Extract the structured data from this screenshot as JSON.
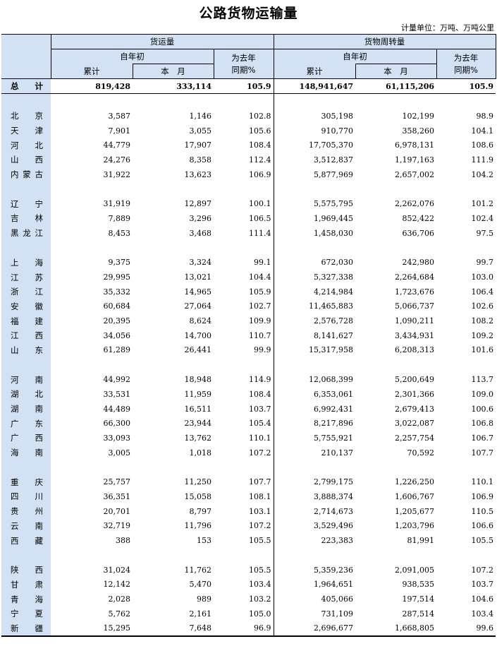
{
  "title": "公路货物运输量",
  "unit_label": "计量单位：万吨、万吨公里",
  "header": {
    "freight_volume": "货运量",
    "turnover": "货物周转量",
    "ytd_line1": "自年初",
    "ytd_line2": "累计",
    "month": "本　月",
    "yoy_line1": "为去年",
    "yoy_line2": "同期%"
  },
  "total": {
    "name": "总　计",
    "vol_ytd": "819,428",
    "vol_month": "333,114",
    "vol_yoy": "105.9",
    "turn_ytd": "148,941,647",
    "turn_month": "61,115,206",
    "turn_yoy": "105.9"
  },
  "groups": [
    [
      {
        "name": "北京",
        "vol_ytd": "3,587",
        "vol_month": "1,146",
        "vol_yoy": "102.8",
        "turn_ytd": "305,198",
        "turn_month": "102,199",
        "turn_yoy": "98.9"
      },
      {
        "name": "天津",
        "vol_ytd": "7,901",
        "vol_month": "3,055",
        "vol_yoy": "105.6",
        "turn_ytd": "910,770",
        "turn_month": "358,260",
        "turn_yoy": "104.1"
      },
      {
        "name": "河北",
        "vol_ytd": "44,779",
        "vol_month": "17,907",
        "vol_yoy": "108.4",
        "turn_ytd": "17,705,370",
        "turn_month": "6,978,131",
        "turn_yoy": "108.6"
      },
      {
        "name": "山西",
        "vol_ytd": "24,276",
        "vol_month": "8,358",
        "vol_yoy": "112.4",
        "turn_ytd": "3,512,837",
        "turn_month": "1,197,163",
        "turn_yoy": "111.9"
      },
      {
        "name": "内蒙古",
        "vol_ytd": "31,922",
        "vol_month": "13,623",
        "vol_yoy": "106.9",
        "turn_ytd": "5,877,969",
        "turn_month": "2,657,002",
        "turn_yoy": "104.2"
      }
    ],
    [
      {
        "name": "辽宁",
        "vol_ytd": "31,919",
        "vol_month": "12,897",
        "vol_yoy": "100.1",
        "turn_ytd": "5,575,795",
        "turn_month": "2,262,076",
        "turn_yoy": "101.2"
      },
      {
        "name": "吉林",
        "vol_ytd": "7,889",
        "vol_month": "3,296",
        "vol_yoy": "106.5",
        "turn_ytd": "1,969,445",
        "turn_month": "852,422",
        "turn_yoy": "102.4"
      },
      {
        "name": "黑龙江",
        "vol_ytd": "8,453",
        "vol_month": "3,468",
        "vol_yoy": "111.4",
        "turn_ytd": "1,458,030",
        "turn_month": "636,706",
        "turn_yoy": "97.5"
      }
    ],
    [
      {
        "name": "上海",
        "vol_ytd": "9,375",
        "vol_month": "3,324",
        "vol_yoy": "99.1",
        "turn_ytd": "672,030",
        "turn_month": "242,980",
        "turn_yoy": "99.7"
      },
      {
        "name": "江苏",
        "vol_ytd": "29,995",
        "vol_month": "13,021",
        "vol_yoy": "104.4",
        "turn_ytd": "5,327,338",
        "turn_month": "2,264,684",
        "turn_yoy": "103.0"
      },
      {
        "name": "浙江",
        "vol_ytd": "35,332",
        "vol_month": "14,965",
        "vol_yoy": "105.9",
        "turn_ytd": "4,214,984",
        "turn_month": "1,723,676",
        "turn_yoy": "106.4"
      },
      {
        "name": "安徽",
        "vol_ytd": "60,684",
        "vol_month": "27,064",
        "vol_yoy": "102.7",
        "turn_ytd": "11,465,883",
        "turn_month": "5,066,737",
        "turn_yoy": "102.6"
      },
      {
        "name": "福建",
        "vol_ytd": "20,395",
        "vol_month": "8,624",
        "vol_yoy": "109.9",
        "turn_ytd": "2,576,728",
        "turn_month": "1,090,211",
        "turn_yoy": "108.2"
      },
      {
        "name": "江西",
        "vol_ytd": "34,056",
        "vol_month": "14,700",
        "vol_yoy": "110.7",
        "turn_ytd": "8,141,627",
        "turn_month": "3,434,931",
        "turn_yoy": "109.2"
      },
      {
        "name": "山东",
        "vol_ytd": "61,289",
        "vol_month": "26,441",
        "vol_yoy": "99.9",
        "turn_ytd": "15,317,958",
        "turn_month": "6,208,313",
        "turn_yoy": "101.6"
      }
    ],
    [
      {
        "name": "河南",
        "vol_ytd": "44,992",
        "vol_month": "18,948",
        "vol_yoy": "114.9",
        "turn_ytd": "12,068,399",
        "turn_month": "5,200,649",
        "turn_yoy": "113.7"
      },
      {
        "name": "湖北",
        "vol_ytd": "33,531",
        "vol_month": "11,959",
        "vol_yoy": "108.4",
        "turn_ytd": "6,353,061",
        "turn_month": "2,301,366",
        "turn_yoy": "109.0"
      },
      {
        "name": "湖南",
        "vol_ytd": "44,489",
        "vol_month": "16,511",
        "vol_yoy": "103.7",
        "turn_ytd": "6,992,431",
        "turn_month": "2,679,413",
        "turn_yoy": "100.6"
      },
      {
        "name": "广东",
        "vol_ytd": "66,300",
        "vol_month": "23,944",
        "vol_yoy": "105.4",
        "turn_ytd": "8,217,896",
        "turn_month": "3,022,087",
        "turn_yoy": "106.8"
      },
      {
        "name": "广西",
        "vol_ytd": "33,093",
        "vol_month": "13,762",
        "vol_yoy": "110.1",
        "turn_ytd": "5,755,921",
        "turn_month": "2,257,754",
        "turn_yoy": "106.7"
      },
      {
        "name": "海南",
        "vol_ytd": "3,005",
        "vol_month": "1,018",
        "vol_yoy": "107.2",
        "turn_ytd": "210,137",
        "turn_month": "70,592",
        "turn_yoy": "107.7"
      }
    ],
    [
      {
        "name": "重庆",
        "vol_ytd": "25,757",
        "vol_month": "11,250",
        "vol_yoy": "107.7",
        "turn_ytd": "2,799,175",
        "turn_month": "1,226,250",
        "turn_yoy": "110.1"
      },
      {
        "name": "四川",
        "vol_ytd": "36,351",
        "vol_month": "15,058",
        "vol_yoy": "108.1",
        "turn_ytd": "3,888,374",
        "turn_month": "1,606,767",
        "turn_yoy": "106.9"
      },
      {
        "name": "贵州",
        "vol_ytd": "20,701",
        "vol_month": "8,797",
        "vol_yoy": "103.1",
        "turn_ytd": "2,714,673",
        "turn_month": "1,205,677",
        "turn_yoy": "110.5"
      },
      {
        "name": "云南",
        "vol_ytd": "32,719",
        "vol_month": "11,796",
        "vol_yoy": "107.2",
        "turn_ytd": "3,529,496",
        "turn_month": "1,203,796",
        "turn_yoy": "106.6"
      },
      {
        "name": "西藏",
        "vol_ytd": "388",
        "vol_month": "153",
        "vol_yoy": "105.5",
        "turn_ytd": "223,383",
        "turn_month": "81,991",
        "turn_yoy": "105.5"
      }
    ],
    [
      {
        "name": "陕西",
        "vol_ytd": "31,024",
        "vol_month": "11,762",
        "vol_yoy": "105.5",
        "turn_ytd": "5,359,236",
        "turn_month": "2,091,005",
        "turn_yoy": "107.2"
      },
      {
        "name": "甘肃",
        "vol_ytd": "12,142",
        "vol_month": "5,470",
        "vol_yoy": "103.4",
        "turn_ytd": "1,964,651",
        "turn_month": "938,535",
        "turn_yoy": "103.7"
      },
      {
        "name": "青海",
        "vol_ytd": "2,028",
        "vol_month": "989",
        "vol_yoy": "103.2",
        "turn_ytd": "405,066",
        "turn_month": "197,514",
        "turn_yoy": "104.6"
      },
      {
        "name": "宁夏",
        "vol_ytd": "5,762",
        "vol_month": "2,161",
        "vol_yoy": "105.0",
        "turn_ytd": "731,109",
        "turn_month": "287,514",
        "turn_yoy": "103.4"
      },
      {
        "name": "新疆",
        "vol_ytd": "15,295",
        "vol_month": "7,648",
        "vol_yoy": "96.9",
        "turn_ytd": "2,696,677",
        "turn_month": "1,668,805",
        "turn_yoy": "99.6"
      }
    ]
  ]
}
